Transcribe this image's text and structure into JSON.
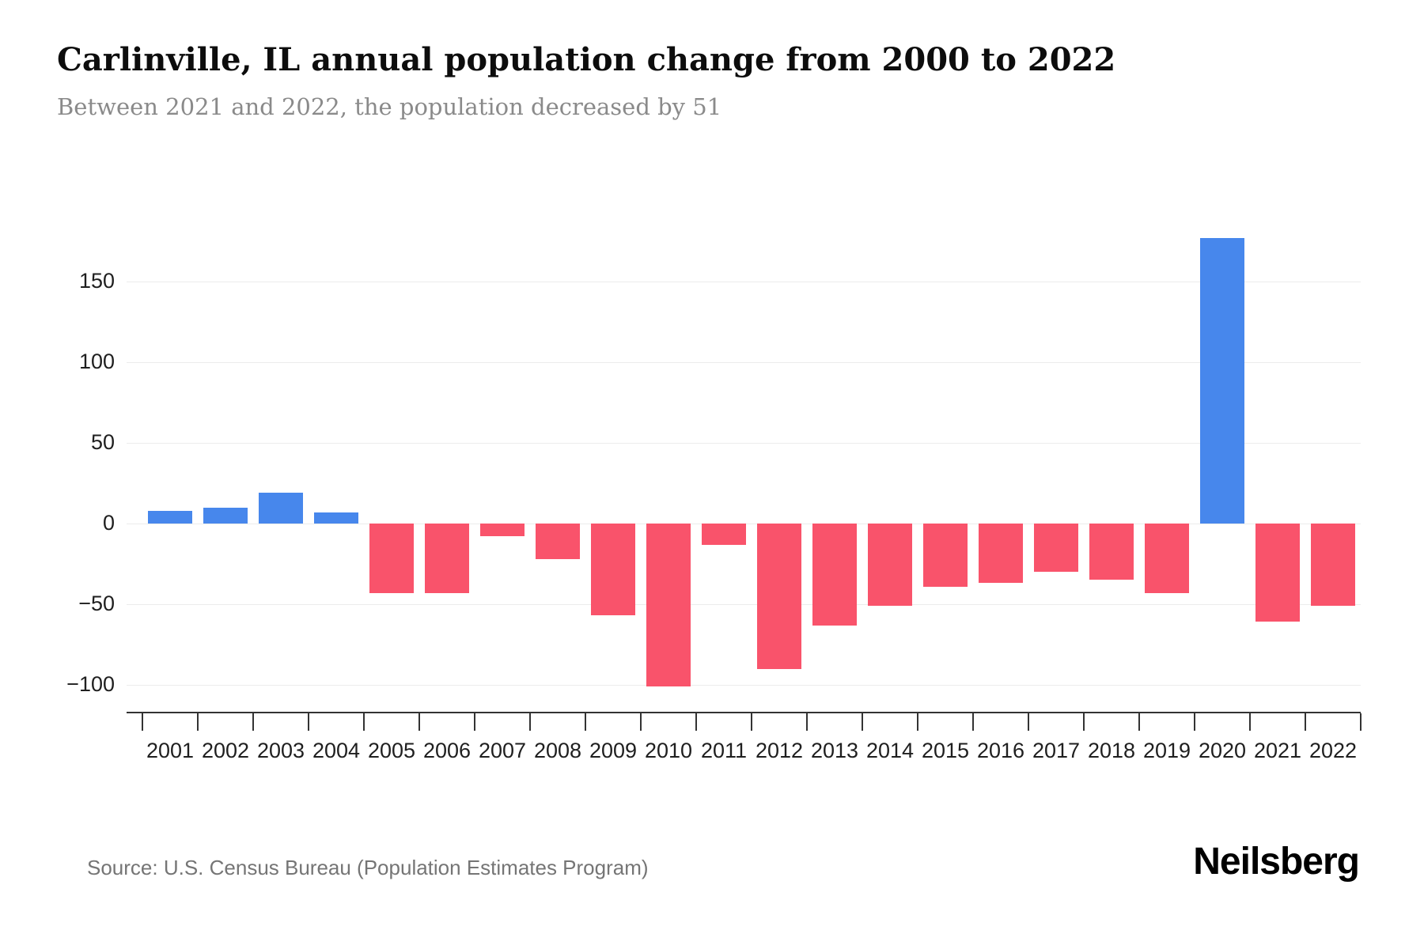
{
  "header": {
    "title": "Carlinville, IL annual population change from 2000 to 2022",
    "subtitle": "Between 2021 and 2022, the population decreased by 51"
  },
  "footer": {
    "source": "Source: U.S. Census Bureau (Population Estimates Program)",
    "brand": "Neilsberg"
  },
  "chart_data": {
    "type": "bar",
    "title": "Carlinville, IL annual population change from 2000 to 2022",
    "subtitle": "Between 2021 and 2022, the population decreased by 51",
    "categories": [
      "2001",
      "2002",
      "2003",
      "2004",
      "2005",
      "2006",
      "2007",
      "2008",
      "2009",
      "2010",
      "2011",
      "2012",
      "2013",
      "2014",
      "2015",
      "2016",
      "2017",
      "2018",
      "2019",
      "2020",
      "2021",
      "2022"
    ],
    "values": [
      8,
      10,
      19,
      7,
      -43,
      -43,
      -8,
      -22,
      -57,
      -101,
      -13,
      -90,
      -63,
      -51,
      -39,
      -37,
      -30,
      -35,
      -43,
      177,
      -61,
      -51
    ],
    "xlabel": "",
    "ylabel": "",
    "yticks": [
      150,
      100,
      50,
      0,
      -50,
      -100
    ],
    "ylim": [
      -117,
      180
    ],
    "grid": true,
    "legend": false,
    "positive_color": "#4787EC",
    "negative_color": "#F9536B"
  }
}
